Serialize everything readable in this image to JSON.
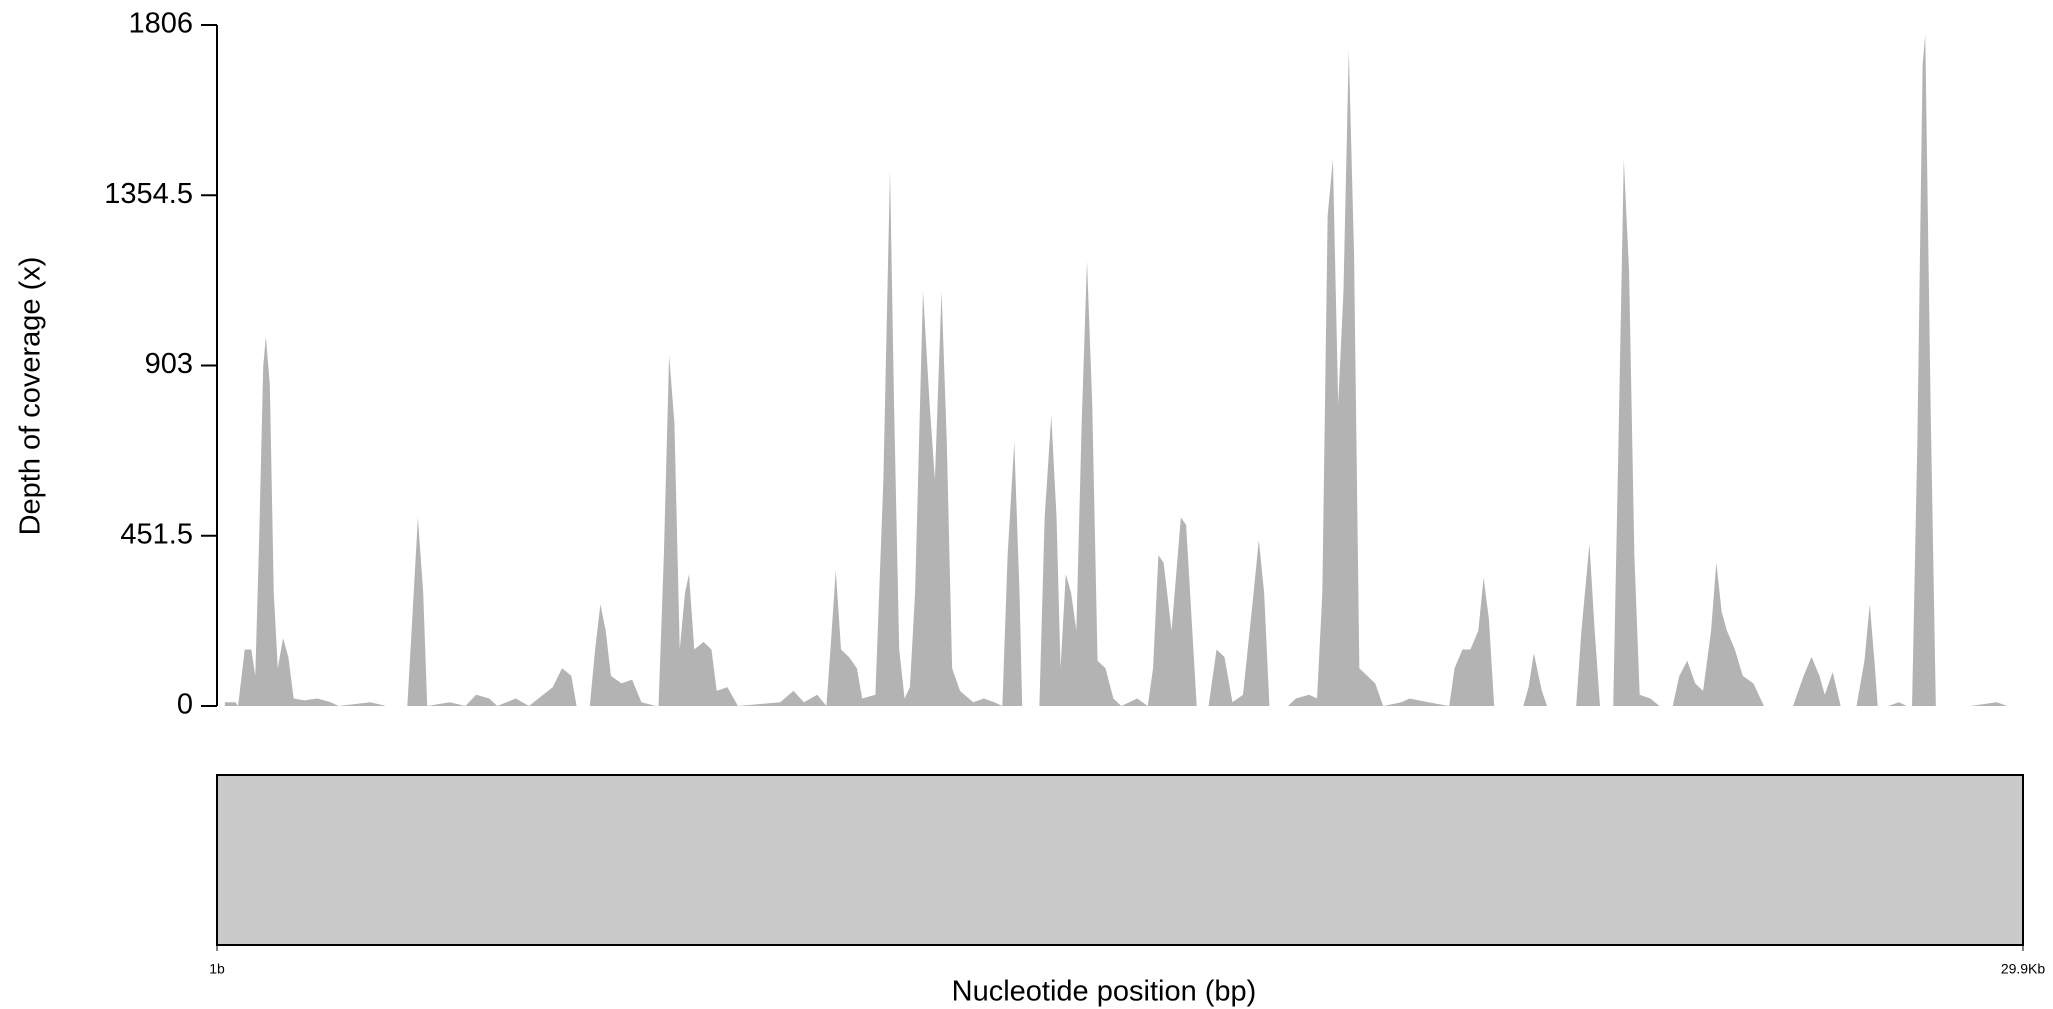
{
  "chart_data": {
    "type": "area",
    "y_label": "Depth of coverage (x)",
    "x_label": "Nucleotide position (bp)",
    "color": "#b3b3b3",
    "xlim": [
      1,
      29900
    ],
    "xticks": [
      {
        "value": 1,
        "label": "1b"
      },
      {
        "value": 29900,
        "label": "29.9Kb"
      }
    ],
    "ylim": [
      0,
      1806
    ],
    "yticks": [
      0,
      451.5,
      903,
      1354.5,
      1806
    ],
    "x": [
      131,
      306,
      350,
      460,
      569,
      635,
      700,
      766,
      810,
      876,
      941,
      1007,
      1095,
      1182,
      1270,
      1445,
      1664,
      1883,
      2014,
      2539,
      2802,
      3152,
      3240,
      3327,
      3415,
      3481,
      3853,
      4115,
      4290,
      4509,
      4641,
      4947,
      5166,
      5560,
      5713,
      5867,
      5954,
      6173,
      6261,
      6348,
      6436,
      6523,
      6698,
      6873,
      7027,
      7267,
      7311,
      7399,
      7486,
      7574,
      7662,
      7749,
      7815,
      7902,
      8056,
      8187,
      8274,
      8450,
      8625,
      9325,
      9544,
      9719,
      9938,
      10090,
      10157,
      10245,
      10332,
      10463,
      10595,
      10682,
      10901,
      11033,
      11143,
      11210,
      11295,
      11384,
      11472,
      11558,
      11689,
      11799,
      11886,
      11996,
      12083,
      12171,
      12302,
      12521,
      12696,
      12871,
      13003,
      13090,
      13200,
      13287,
      13331,
      13616,
      13703,
      13813,
      13900,
      13966,
      14053,
      14141,
      14228,
      14316,
      14404,
      14491,
      14579,
      14710,
      14841,
      14973,
      15235,
      15410,
      15498,
      15586,
      15673,
      15804,
      15958,
      16045,
      16111,
      16220,
      16417,
      16549,
      16680,
      16812,
      16987,
      17162,
      17249,
      17337,
      17424,
      17731,
      17863,
      18080,
      18213,
      18300,
      18388,
      18475,
      18563,
      18650,
      18738,
      18825,
      18913,
      19044,
      19176,
      19307,
      19613,
      19745,
      20051,
      20401,
      20489,
      20620,
      20751,
      20883,
      20970,
      21058,
      21145,
      21627,
      21715,
      21802,
      21934,
      22021,
      22503,
      22590,
      22722,
      22809,
      22897,
      23116,
      23203,
      23291,
      23379,
      23466,
      23554,
      23729,
      23882,
      24101,
      24210,
      24342,
      24473,
      24604,
      24736,
      24823,
      24911,
      24998,
      25130,
      25261,
      25436,
      25611,
      26093,
      26268,
      26399,
      26531,
      26618,
      26750,
      26881,
      27144,
      27275,
      27363,
      27450,
      27494,
      27669,
      27844,
      27975,
      28063,
      28151,
      28238,
      28282,
      28370,
      28457,
      29026,
      29245,
      29464,
      29639
    ],
    "values": [
      10,
      10,
      0,
      150,
      150,
      80,
      450,
      900,
      980,
      850,
      300,
      100,
      180,
      130,
      20,
      15,
      20,
      10,
      0,
      10,
      0,
      0,
      250,
      500,
      300,
      0,
      10,
      0,
      30,
      20,
      0,
      20,
      0,
      50,
      100,
      80,
      0,
      0,
      150,
      270,
      200,
      80,
      60,
      70,
      10,
      0,
      0,
      400,
      930,
      750,
      150,
      300,
      350,
      150,
      170,
      150,
      40,
      50,
      0,
      10,
      40,
      10,
      30,
      0,
      150,
      360,
      150,
      130,
      100,
      20,
      30,
      600,
      1420,
      800,
      150,
      20,
      50,
      300,
      1100,
      800,
      600,
      1100,
      700,
      100,
      40,
      10,
      20,
      10,
      0,
      400,
      700,
      300,
      0,
      0,
      500,
      770,
      500,
      100,
      350,
      300,
      200,
      750,
      1180,
      800,
      120,
      100,
      20,
      0,
      20,
      0,
      100,
      400,
      380,
      200,
      500,
      480,
      300,
      0,
      0,
      150,
      130,
      10,
      30,
      300,
      440,
      300,
      0,
      0,
      20,
      30,
      20,
      300,
      1300,
      1450,
      800,
      1100,
      1740,
      1200,
      100,
      80,
      60,
      0,
      10,
      20,
      10,
      0,
      100,
      150,
      150,
      200,
      340,
      230,
      0,
      0,
      50,
      140,
      40,
      0,
      0,
      200,
      430,
      200,
      0,
      0,
      700,
      1450,
      1150,
      400,
      30,
      20,
      0,
      0,
      80,
      120,
      60,
      40,
      200,
      380,
      250,
      200,
      150,
      80,
      60,
      0,
      0,
      80,
      130,
      80,
      30,
      90,
      0,
      0,
      120,
      270,
      100,
      0,
      0,
      10,
      0,
      0,
      700,
      1700,
      1780,
      800,
      0,
      0,
      5,
      10,
      0
    ]
  }
}
